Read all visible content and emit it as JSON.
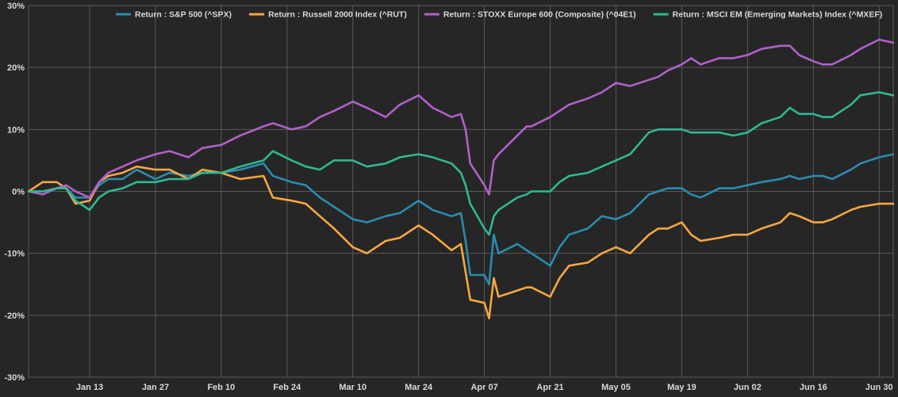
{
  "chart_data": {
    "type": "line",
    "title": "",
    "xlabel": "",
    "ylabel": "",
    "ylim": [
      -30,
      30
    ],
    "y_ticks": [
      30,
      20,
      10,
      0,
      -10,
      -20,
      -30
    ],
    "y_tick_labels": [
      "30%",
      "20%",
      "10%",
      "0%",
      "-10%",
      "-20%",
      "-30%"
    ],
    "x_ticks": [
      "2025-01-13",
      "2025-01-27",
      "2025-02-10",
      "2025-02-24",
      "2025-03-10",
      "2025-03-24",
      "2025-04-07",
      "2025-04-21",
      "2025-05-05",
      "2025-05-19",
      "2025-06-02",
      "2025-06-16",
      "2025-06-30"
    ],
    "x_tick_labels": [
      "Jan 13",
      "Jan 27",
      "Feb 10",
      "Feb 24",
      "Mar 10",
      "Mar 24",
      "Apr 07",
      "Apr 21",
      "May 05",
      "May 19",
      "Jun 02",
      "Jun 16",
      "Jun 30"
    ],
    "xlim": [
      "2024-12-31",
      "2025-07-03"
    ],
    "grid": true,
    "legend_position": "top",
    "background": "#262626",
    "grid_color": "#5a5a5a",
    "series": [
      {
        "name": "Return : S&P 500 (^SPX)",
        "color": "#2a8cb0",
        "points": [
          [
            "2024-12-31",
            0
          ],
          [
            "2025-01-03",
            0
          ],
          [
            "2025-01-06",
            0.5
          ],
          [
            "2025-01-08",
            0.5
          ],
          [
            "2025-01-10",
            -1
          ],
          [
            "2025-01-13",
            -1
          ],
          [
            "2025-01-15",
            1
          ],
          [
            "2025-01-17",
            2
          ],
          [
            "2025-01-20",
            2
          ],
          [
            "2025-01-23",
            3.5
          ],
          [
            "2025-01-27",
            2
          ],
          [
            "2025-01-30",
            3
          ],
          [
            "2025-02-03",
            2.5
          ],
          [
            "2025-02-06",
            3
          ],
          [
            "2025-02-10",
            3
          ],
          [
            "2025-02-14",
            3.5
          ],
          [
            "2025-02-19",
            4.5
          ],
          [
            "2025-02-21",
            2.5
          ],
          [
            "2025-02-25",
            1.5
          ],
          [
            "2025-02-28",
            1
          ],
          [
            "2025-03-03",
            -1
          ],
          [
            "2025-03-06",
            -2.5
          ],
          [
            "2025-03-10",
            -4.5
          ],
          [
            "2025-03-13",
            -5
          ],
          [
            "2025-03-17",
            -4
          ],
          [
            "2025-03-20",
            -3.5
          ],
          [
            "2025-03-24",
            -1.5
          ],
          [
            "2025-03-27",
            -3
          ],
          [
            "2025-03-31",
            -4
          ],
          [
            "2025-04-02",
            -3.5
          ],
          [
            "2025-04-03",
            -8
          ],
          [
            "2025-04-04",
            -13.5
          ],
          [
            "2025-04-07",
            -13.5
          ],
          [
            "2025-04-08",
            -15
          ],
          [
            "2025-04-09",
            -7
          ],
          [
            "2025-04-10",
            -10
          ],
          [
            "2025-04-14",
            -8.5
          ],
          [
            "2025-04-16",
            -9.5
          ],
          [
            "2025-04-17",
            -10
          ],
          [
            "2025-04-21",
            -12
          ],
          [
            "2025-04-23",
            -9
          ],
          [
            "2025-04-25",
            -7
          ],
          [
            "2025-04-29",
            -6
          ],
          [
            "2025-05-02",
            -4
          ],
          [
            "2025-05-05",
            -4.5
          ],
          [
            "2025-05-08",
            -3.5
          ],
          [
            "2025-05-12",
            -0.5
          ],
          [
            "2025-05-14",
            0
          ],
          [
            "2025-05-16",
            0.5
          ],
          [
            "2025-05-19",
            0.5
          ],
          [
            "2025-05-21",
            -0.5
          ],
          [
            "2025-05-23",
            -1
          ],
          [
            "2025-05-27",
            0.5
          ],
          [
            "2025-05-30",
            0.5
          ],
          [
            "2025-06-02",
            1
          ],
          [
            "2025-06-05",
            1.5
          ],
          [
            "2025-06-09",
            2
          ],
          [
            "2025-06-11",
            2.5
          ],
          [
            "2025-06-13",
            2
          ],
          [
            "2025-06-16",
            2.5
          ],
          [
            "2025-06-18",
            2.5
          ],
          [
            "2025-06-20",
            2
          ],
          [
            "2025-06-24",
            3.5
          ],
          [
            "2025-06-26",
            4.5
          ],
          [
            "2025-06-30",
            5.5
          ],
          [
            "2025-07-03",
            6
          ]
        ]
      },
      {
        "name": "Return : Russell 2000 Index (^RUT)",
        "color": "#f5a742",
        "points": [
          [
            "2024-12-31",
            0
          ],
          [
            "2025-01-03",
            1.5
          ],
          [
            "2025-01-06",
            1.5
          ],
          [
            "2025-01-08",
            0.5
          ],
          [
            "2025-01-10",
            -2
          ],
          [
            "2025-01-13",
            -1.5
          ],
          [
            "2025-01-15",
            1.5
          ],
          [
            "2025-01-17",
            2.5
          ],
          [
            "2025-01-20",
            3
          ],
          [
            "2025-01-23",
            4
          ],
          [
            "2025-01-27",
            3.5
          ],
          [
            "2025-01-30",
            3.5
          ],
          [
            "2025-02-03",
            2
          ],
          [
            "2025-02-06",
            3.5
          ],
          [
            "2025-02-10",
            3
          ],
          [
            "2025-02-14",
            2
          ],
          [
            "2025-02-19",
            2.5
          ],
          [
            "2025-02-21",
            -1
          ],
          [
            "2025-02-25",
            -1.5
          ],
          [
            "2025-02-28",
            -2
          ],
          [
            "2025-03-03",
            -4
          ],
          [
            "2025-03-06",
            -6
          ],
          [
            "2025-03-10",
            -9
          ],
          [
            "2025-03-13",
            -10
          ],
          [
            "2025-03-17",
            -8
          ],
          [
            "2025-03-20",
            -7.5
          ],
          [
            "2025-03-24",
            -5.5
          ],
          [
            "2025-03-27",
            -7
          ],
          [
            "2025-03-31",
            -9.5
          ],
          [
            "2025-04-02",
            -8.5
          ],
          [
            "2025-04-03",
            -13
          ],
          [
            "2025-04-04",
            -17.5
          ],
          [
            "2025-04-07",
            -18
          ],
          [
            "2025-04-08",
            -20.5
          ],
          [
            "2025-04-09",
            -14
          ],
          [
            "2025-04-10",
            -17
          ],
          [
            "2025-04-14",
            -16
          ],
          [
            "2025-04-16",
            -15.5
          ],
          [
            "2025-04-17",
            -15.5
          ],
          [
            "2025-04-21",
            -17
          ],
          [
            "2025-04-23",
            -14
          ],
          [
            "2025-04-25",
            -12
          ],
          [
            "2025-04-29",
            -11.5
          ],
          [
            "2025-05-02",
            -10
          ],
          [
            "2025-05-05",
            -9
          ],
          [
            "2025-05-08",
            -10
          ],
          [
            "2025-05-12",
            -7
          ],
          [
            "2025-05-14",
            -6
          ],
          [
            "2025-05-16",
            -6
          ],
          [
            "2025-05-19",
            -5
          ],
          [
            "2025-05-21",
            -7
          ],
          [
            "2025-05-23",
            -8
          ],
          [
            "2025-05-27",
            -7.5
          ],
          [
            "2025-05-30",
            -7
          ],
          [
            "2025-06-02",
            -7
          ],
          [
            "2025-06-05",
            -6
          ],
          [
            "2025-06-09",
            -5
          ],
          [
            "2025-06-11",
            -3.5
          ],
          [
            "2025-06-13",
            -4
          ],
          [
            "2025-06-16",
            -5
          ],
          [
            "2025-06-18",
            -5
          ],
          [
            "2025-06-20",
            -4.5
          ],
          [
            "2025-06-24",
            -3
          ],
          [
            "2025-06-26",
            -2.5
          ],
          [
            "2025-06-30",
            -2
          ],
          [
            "2025-07-03",
            -2
          ]
        ]
      },
      {
        "name": "Return : STOXX Europe 600 (Composite) (^04E1)",
        "color": "#b061c9",
        "points": [
          [
            "2024-12-31",
            0
          ],
          [
            "2025-01-03",
            -0.5
          ],
          [
            "2025-01-06",
            0.5
          ],
          [
            "2025-01-08",
            1
          ],
          [
            "2025-01-10",
            0
          ],
          [
            "2025-01-13",
            -1
          ],
          [
            "2025-01-15",
            1.5
          ],
          [
            "2025-01-17",
            3
          ],
          [
            "2025-01-20",
            4
          ],
          [
            "2025-01-23",
            5
          ],
          [
            "2025-01-27",
            6
          ],
          [
            "2025-01-30",
            6.5
          ],
          [
            "2025-02-03",
            5.5
          ],
          [
            "2025-02-06",
            7
          ],
          [
            "2025-02-10",
            7.5
          ],
          [
            "2025-02-14",
            9
          ],
          [
            "2025-02-19",
            10.5
          ],
          [
            "2025-02-21",
            11
          ],
          [
            "2025-02-25",
            10
          ],
          [
            "2025-02-28",
            10.5
          ],
          [
            "2025-03-03",
            12
          ],
          [
            "2025-03-06",
            13
          ],
          [
            "2025-03-10",
            14.5
          ],
          [
            "2025-03-13",
            13.5
          ],
          [
            "2025-03-17",
            12
          ],
          [
            "2025-03-20",
            14
          ],
          [
            "2025-03-24",
            15.5
          ],
          [
            "2025-03-27",
            13.5
          ],
          [
            "2025-03-31",
            12
          ],
          [
            "2025-04-02",
            12.5
          ],
          [
            "2025-04-03",
            10
          ],
          [
            "2025-04-04",
            4.5
          ],
          [
            "2025-04-07",
            1
          ],
          [
            "2025-04-08",
            -0.5
          ],
          [
            "2025-04-09",
            5
          ],
          [
            "2025-04-10",
            6
          ],
          [
            "2025-04-14",
            9
          ],
          [
            "2025-04-16",
            10.5
          ],
          [
            "2025-04-17",
            10.5
          ],
          [
            "2025-04-21",
            12
          ],
          [
            "2025-04-23",
            13
          ],
          [
            "2025-04-25",
            14
          ],
          [
            "2025-04-29",
            15
          ],
          [
            "2025-05-02",
            16
          ],
          [
            "2025-05-05",
            17.5
          ],
          [
            "2025-05-08",
            17
          ],
          [
            "2025-05-12",
            18
          ],
          [
            "2025-05-14",
            18.5
          ],
          [
            "2025-05-16",
            19.5
          ],
          [
            "2025-05-19",
            20.5
          ],
          [
            "2025-05-21",
            21.5
          ],
          [
            "2025-05-23",
            20.5
          ],
          [
            "2025-05-27",
            21.5
          ],
          [
            "2025-05-30",
            21.5
          ],
          [
            "2025-06-02",
            22
          ],
          [
            "2025-06-05",
            23
          ],
          [
            "2025-06-09",
            23.5
          ],
          [
            "2025-06-11",
            23.5
          ],
          [
            "2025-06-13",
            22
          ],
          [
            "2025-06-16",
            21
          ],
          [
            "2025-06-18",
            20.5
          ],
          [
            "2025-06-20",
            20.5
          ],
          [
            "2025-06-24",
            22
          ],
          [
            "2025-06-26",
            23
          ],
          [
            "2025-06-30",
            24.5
          ],
          [
            "2025-07-03",
            24
          ]
        ]
      },
      {
        "name": "Return : MSCI EM (Emerging Markets) Index (^MXEF)",
        "color": "#2fb893",
        "points": [
          [
            "2024-12-31",
            0
          ],
          [
            "2025-01-03",
            0
          ],
          [
            "2025-01-06",
            0.5
          ],
          [
            "2025-01-08",
            0.5
          ],
          [
            "2025-01-10",
            -1.5
          ],
          [
            "2025-01-13",
            -3
          ],
          [
            "2025-01-15",
            -1
          ],
          [
            "2025-01-17",
            0
          ],
          [
            "2025-01-20",
            0.5
          ],
          [
            "2025-01-23",
            1.5
          ],
          [
            "2025-01-27",
            1.5
          ],
          [
            "2025-01-30",
            2
          ],
          [
            "2025-02-03",
            2
          ],
          [
            "2025-02-06",
            3
          ],
          [
            "2025-02-10",
            3
          ],
          [
            "2025-02-14",
            4
          ],
          [
            "2025-02-19",
            5
          ],
          [
            "2025-02-21",
            6.5
          ],
          [
            "2025-02-25",
            5
          ],
          [
            "2025-02-28",
            4
          ],
          [
            "2025-03-03",
            3.5
          ],
          [
            "2025-03-06",
            5
          ],
          [
            "2025-03-10",
            5
          ],
          [
            "2025-03-13",
            4
          ],
          [
            "2025-03-17",
            4.5
          ],
          [
            "2025-03-20",
            5.5
          ],
          [
            "2025-03-24",
            6
          ],
          [
            "2025-03-27",
            5.5
          ],
          [
            "2025-03-31",
            4.5
          ],
          [
            "2025-04-02",
            3
          ],
          [
            "2025-04-03",
            1
          ],
          [
            "2025-04-04",
            -2
          ],
          [
            "2025-04-07",
            -6
          ],
          [
            "2025-04-08",
            -7
          ],
          [
            "2025-04-09",
            -4
          ],
          [
            "2025-04-10",
            -3
          ],
          [
            "2025-04-14",
            -1
          ],
          [
            "2025-04-16",
            -0.5
          ],
          [
            "2025-04-17",
            0
          ],
          [
            "2025-04-21",
            0
          ],
          [
            "2025-04-23",
            1.5
          ],
          [
            "2025-04-25",
            2.5
          ],
          [
            "2025-04-29",
            3
          ],
          [
            "2025-05-02",
            4
          ],
          [
            "2025-05-05",
            5
          ],
          [
            "2025-05-08",
            6
          ],
          [
            "2025-05-12",
            9.5
          ],
          [
            "2025-05-14",
            10
          ],
          [
            "2025-05-16",
            10
          ],
          [
            "2025-05-19",
            10
          ],
          [
            "2025-05-21",
            9.5
          ],
          [
            "2025-05-23",
            9.5
          ],
          [
            "2025-05-27",
            9.5
          ],
          [
            "2025-05-30",
            9
          ],
          [
            "2025-06-02",
            9.5
          ],
          [
            "2025-06-05",
            11
          ],
          [
            "2025-06-09",
            12
          ],
          [
            "2025-06-11",
            13.5
          ],
          [
            "2025-06-13",
            12.5
          ],
          [
            "2025-06-16",
            12.5
          ],
          [
            "2025-06-18",
            12
          ],
          [
            "2025-06-20",
            12
          ],
          [
            "2025-06-24",
            14
          ],
          [
            "2025-06-26",
            15.5
          ],
          [
            "2025-06-30",
            16
          ],
          [
            "2025-07-03",
            15.5
          ]
        ]
      }
    ]
  }
}
